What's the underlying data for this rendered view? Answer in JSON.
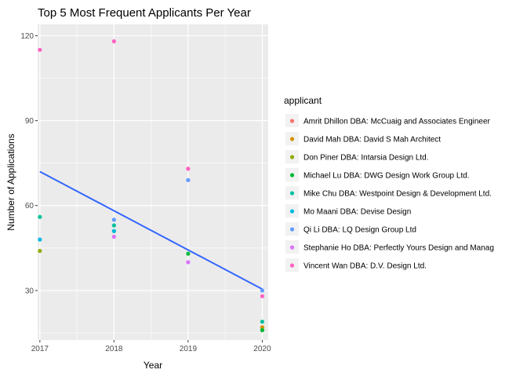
{
  "chart_data": {
    "type": "scatter",
    "title": "Top 5 Most Frequent Applicants Per Year",
    "xlabel": "Year",
    "ylabel": "Number of Applications",
    "x_ticks": [
      "2017",
      "2018",
      "2019",
      "2020"
    ],
    "y_ticks": [
      "30",
      "60",
      "90",
      "120"
    ],
    "xlim": [
      2016.97,
      2020.08
    ],
    "ylim": [
      12.5,
      124
    ],
    "grid": true,
    "legend_title": "applicant",
    "legend_position": "right",
    "series": [
      {
        "name": "Amrit Dhillon DBA: McCuaig and Associates Engineer",
        "color": "#F8766D",
        "points": []
      },
      {
        "name": "David Mah DBA: David S Mah Architect",
        "color": "#D39200",
        "points": [
          {
            "x": 2020,
            "y": 17
          }
        ]
      },
      {
        "name": "Don Piner DBA: Intarsia Design Ltd.",
        "color": "#93AA00",
        "points": [
          {
            "x": 2017,
            "y": 44
          },
          {
            "x": 2020,
            "y": 16
          }
        ]
      },
      {
        "name": "Michael Lu DBA: DWG Design Work Group Ltd.",
        "color": "#00BA38",
        "points": [
          {
            "x": 2018,
            "y": 51
          },
          {
            "x": 2019,
            "y": 43
          },
          {
            "x": 2020,
            "y": 16
          }
        ]
      },
      {
        "name": "Mike Chu DBA: Westpoint Design & Development Ltd.",
        "color": "#00C19F",
        "points": [
          {
            "x": 2017,
            "y": 56
          },
          {
            "x": 2018,
            "y": 53
          },
          {
            "x": 2020,
            "y": 19
          }
        ]
      },
      {
        "name": "Mo Maani DBA: Devise Design",
        "color": "#00B9E3",
        "points": [
          {
            "x": 2017,
            "y": 48
          },
          {
            "x": 2018,
            "y": 51
          }
        ]
      },
      {
        "name": "Qi Li DBA: LQ Design Group Ltd",
        "color": "#619CFF",
        "points": [
          {
            "x": 2018,
            "y": 55
          },
          {
            "x": 2019,
            "y": 69
          },
          {
            "x": 2020,
            "y": 30
          }
        ]
      },
      {
        "name": "Stephanie Ho DBA: Perfectly Yours Design and Manag",
        "color": "#DB72FB",
        "points": [
          {
            "x": 2018,
            "y": 49
          },
          {
            "x": 2019,
            "y": 40
          }
        ]
      },
      {
        "name": "Vincent Wan DBA: D.V. Design Ltd.",
        "color": "#FF61C3",
        "points": [
          {
            "x": 2017,
            "y": 115
          },
          {
            "x": 2018,
            "y": 118
          },
          {
            "x": 2019,
            "y": 73
          },
          {
            "x": 2020,
            "y": 28
          }
        ]
      }
    ],
    "trend_line": {
      "color": "#3366FF",
      "x": [
        2017,
        2020
      ],
      "y": [
        72,
        30.5
      ]
    }
  }
}
